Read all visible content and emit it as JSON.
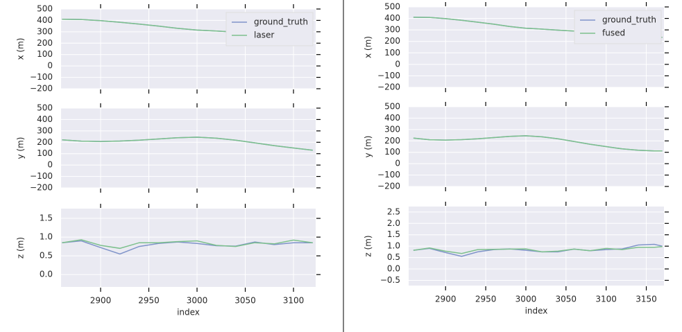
{
  "chart_data": [
    {
      "type": "line",
      "ylabel": "x (m)",
      "x": [
        2860,
        2880,
        2900,
        2920,
        2940,
        2960,
        2980,
        3000,
        3020,
        3040,
        3060,
        3080,
        3100,
        3120
      ],
      "series": [
        {
          "name": "ground_truth",
          "color": "#7f93c9",
          "values": [
            410,
            408,
            398,
            384,
            367,
            350,
            330,
            315,
            307,
            298,
            290,
            282,
            272,
            262
          ]
        },
        {
          "name": "laser",
          "color": "#7cc08c",
          "values": [
            410,
            408,
            398,
            384,
            367,
            350,
            330,
            315,
            307,
            298,
            290,
            282,
            272,
            262
          ]
        }
      ],
      "xlim": [
        2859,
        3123
      ],
      "ylim": [
        -200,
        500
      ],
      "yticks": [
        {
          "value": -200,
          "label": "−200"
        },
        {
          "value": -100,
          "label": "−100"
        },
        0,
        100,
        200,
        300,
        400,
        500
      ],
      "grid": true,
      "legend": "upper right"
    },
    {
      "type": "line",
      "ylabel": "y (m)",
      "x": [
        2860,
        2880,
        2900,
        2920,
        2940,
        2960,
        2980,
        3000,
        3020,
        3040,
        3060,
        3080,
        3100,
        3120
      ],
      "series": [
        {
          "color": "#7f93c9",
          "values": [
            222,
            210,
            207,
            211,
            219,
            229,
            240,
            245,
            236,
            218,
            195,
            171,
            150,
            130
          ]
        },
        {
          "color": "#7cc08c",
          "values": [
            222,
            210,
            207,
            211,
            219,
            229,
            240,
            245,
            236,
            218,
            195,
            171,
            150,
            130
          ]
        }
      ],
      "xlim": [
        2859,
        3123
      ],
      "ylim": [
        -200,
        500
      ],
      "yticks": [
        {
          "value": -200,
          "label": "−200"
        },
        {
          "value": -100,
          "label": "−100"
        },
        0,
        100,
        200,
        300,
        400,
        500
      ],
      "grid": true
    },
    {
      "type": "line",
      "ylabel": "z (m)",
      "xlabel": "index",
      "x": [
        2860,
        2880,
        2900,
        2920,
        2940,
        2960,
        2980,
        3000,
        3020,
        3040,
        3060,
        3080,
        3100,
        3120
      ],
      "series": [
        {
          "color": "#7f93c9",
          "values": [
            0.85,
            0.9,
            0.72,
            0.55,
            0.75,
            0.83,
            0.87,
            0.83,
            0.77,
            0.76,
            0.87,
            0.8,
            0.85,
            0.85
          ]
        },
        {
          "color": "#7cc08c",
          "values": [
            0.85,
            0.93,
            0.78,
            0.7,
            0.85,
            0.85,
            0.88,
            0.9,
            0.78,
            0.75,
            0.85,
            0.82,
            0.92,
            0.85
          ]
        }
      ],
      "xlim": [
        2859,
        3123
      ],
      "ylim": [
        -0.33,
        1.76
      ],
      "xticks": [
        2900,
        2950,
        3000,
        3050,
        3100
      ],
      "yticks": [
        {
          "value": 0,
          "label": "0.0"
        },
        0.5,
        {
          "value": 1,
          "label": "1.0"
        },
        1.5
      ],
      "grid": true
    },
    {
      "type": "line",
      "ylabel": "x (m)",
      "x": [
        2860,
        2880,
        2900,
        2920,
        2940,
        2960,
        2980,
        3000,
        3020,
        3040,
        3060,
        3080,
        3100,
        3120,
        3140,
        3160,
        3170
      ],
      "series": [
        {
          "name": "ground_truth",
          "color": "#7f93c9",
          "values": [
            410,
            409,
            398,
            384,
            367,
            350,
            330,
            315,
            307,
            298,
            290,
            282,
            272,
            262,
            250,
            240,
            235
          ]
        },
        {
          "name": "fused",
          "color": "#7cc08c",
          "values": [
            410,
            409,
            398,
            384,
            367,
            350,
            330,
            315,
            307,
            298,
            290,
            282,
            272,
            262,
            250,
            240,
            235
          ]
        }
      ],
      "xlim": [
        2854,
        3172
      ],
      "ylim": [
        -200,
        500
      ],
      "yticks": [
        {
          "value": -200,
          "label": "−200"
        },
        {
          "value": -100,
          "label": "−100"
        },
        0,
        100,
        200,
        300,
        400,
        500
      ],
      "grid": true,
      "legend": "upper right"
    },
    {
      "type": "line",
      "ylabel": "y (m)",
      "x": [
        2860,
        2880,
        2900,
        2920,
        2940,
        2960,
        2980,
        3000,
        3020,
        3040,
        3060,
        3080,
        3100,
        3120,
        3140,
        3160,
        3170
      ],
      "series": [
        {
          "color": "#7f93c9",
          "values": [
            225,
            210,
            207,
            211,
            219,
            229,
            240,
            245,
            236,
            218,
            195,
            171,
            150,
            130,
            118,
            112,
            112
          ]
        },
        {
          "color": "#7cc08c",
          "values": [
            225,
            210,
            207,
            211,
            219,
            229,
            240,
            245,
            236,
            218,
            195,
            171,
            150,
            130,
            118,
            112,
            112
          ]
        }
      ],
      "xlim": [
        2854,
        3172
      ],
      "ylim": [
        -200,
        500
      ],
      "yticks": [
        {
          "value": -200,
          "label": "−200"
        },
        {
          "value": -100,
          "label": "−100"
        },
        0,
        100,
        200,
        300,
        400,
        500
      ],
      "grid": true
    },
    {
      "type": "line",
      "ylabel": "z (m)",
      "xlabel": "index",
      "x": [
        2860,
        2880,
        2900,
        2920,
        2940,
        2960,
        2980,
        3000,
        3020,
        3040,
        3060,
        3080,
        3100,
        3120,
        3140,
        3160,
        3170
      ],
      "series": [
        {
          "color": "#7f93c9",
          "values": [
            0.82,
            0.9,
            0.72,
            0.55,
            0.75,
            0.85,
            0.88,
            0.82,
            0.75,
            0.75,
            0.87,
            0.8,
            0.85,
            0.88,
            1.05,
            1.08,
            1.0
          ]
        },
        {
          "color": "#7cc08c",
          "values": [
            0.82,
            0.92,
            0.78,
            0.68,
            0.85,
            0.86,
            0.87,
            0.88,
            0.75,
            0.78,
            0.87,
            0.8,
            0.9,
            0.85,
            0.95,
            0.95,
            0.98
          ]
        }
      ],
      "xlim": [
        2854,
        3172
      ],
      "ylim": [
        -0.73,
        2.74
      ],
      "xticks": [
        2900,
        2950,
        3000,
        3050,
        3100,
        3150
      ],
      "yticks": [
        {
          "value": -0.5,
          "label": "−0.5"
        },
        {
          "value": 0,
          "label": "0.0"
        },
        0.5,
        {
          "value": 1,
          "label": "1.0"
        },
        1.5,
        {
          "value": 2,
          "label": "2.0"
        },
        2.5
      ],
      "grid": true
    }
  ]
}
